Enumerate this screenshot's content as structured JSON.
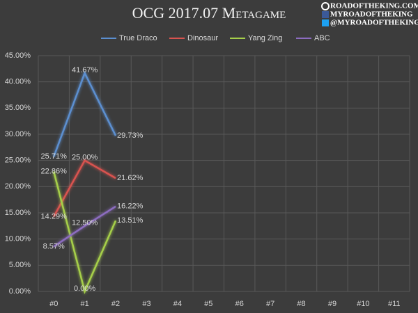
{
  "chart_data": {
    "type": "line",
    "title": "OCG 2017.07 Metagame",
    "watermark": [
      "ROADOFTHEKING.COM",
      "MYROADOFTHEKING",
      "@MYROADOFTHEKING"
    ],
    "categories": [
      "#0",
      "#1",
      "#2",
      "#3",
      "#4",
      "#5",
      "#6",
      "#7",
      "#8",
      "#9",
      "#10",
      "#11"
    ],
    "series": [
      {
        "name": "True Draco",
        "color": "#5b8fd0",
        "values": [
          25.71,
          41.67,
          29.73,
          null,
          null,
          null,
          null,
          null,
          null,
          null,
          null,
          null
        ],
        "value_labels": [
          "25.71%",
          "41.67%",
          "29.73%",
          null,
          null,
          null,
          null,
          null,
          null,
          null,
          null,
          null
        ]
      },
      {
        "name": "Dinosaur",
        "color": "#d9534f",
        "values": [
          14.29,
          25.0,
          21.62,
          null,
          null,
          null,
          null,
          null,
          null,
          null,
          null,
          null
        ],
        "value_labels": [
          "14.29%",
          "25.00%",
          "21.62%",
          null,
          null,
          null,
          null,
          null,
          null,
          null,
          null,
          null
        ]
      },
      {
        "name": "Yang Zing",
        "color": "#a6cf4a",
        "values": [
          22.86,
          0.0,
          13.51,
          null,
          null,
          null,
          null,
          null,
          null,
          null,
          null,
          null
        ],
        "value_labels": [
          "22.86%",
          "0.00%",
          "13.51%",
          null,
          null,
          null,
          null,
          null,
          null,
          null,
          null,
          null
        ]
      },
      {
        "name": "ABC",
        "color": "#8c6cc0",
        "values": [
          8.57,
          12.5,
          16.22,
          null,
          null,
          null,
          null,
          null,
          null,
          null,
          null,
          null
        ],
        "value_labels": [
          "8.57%",
          "12.50%",
          "16.22%",
          null,
          null,
          null,
          null,
          null,
          null,
          null,
          null,
          null
        ]
      }
    ],
    "ylim": [
      0,
      45
    ],
    "yticks": [
      {
        "value": 0,
        "label": "0.00%"
      },
      {
        "value": 5,
        "label": "5.00%"
      },
      {
        "value": 10,
        "label": "10.00%"
      },
      {
        "value": 15,
        "label": "15.00%"
      },
      {
        "value": 20,
        "label": "20.00%"
      },
      {
        "value": 25,
        "label": "25.00%"
      },
      {
        "value": 30,
        "label": "30.00%"
      },
      {
        "value": 35,
        "label": "35.00%"
      },
      {
        "value": 40,
        "label": "40.00%"
      },
      {
        "value": 45,
        "label": "45.00%"
      }
    ],
    "grid": true,
    "legend": "top"
  }
}
